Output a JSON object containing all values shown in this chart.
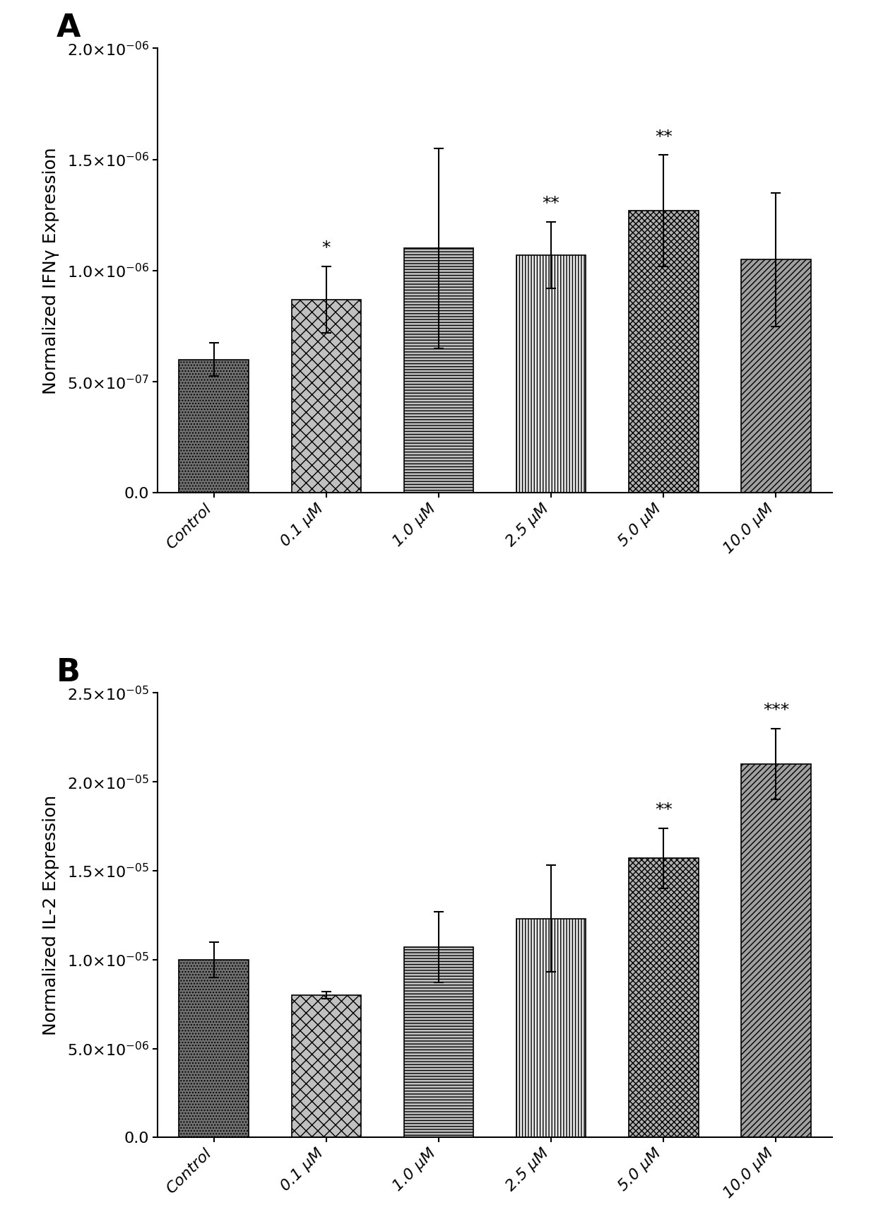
{
  "panel_A": {
    "label": "A",
    "ylabel": "Normalized IFNγ Expression",
    "categories": [
      "Control",
      "0.1 μM",
      "1.0 μM",
      "2.5 μM",
      "5.0 μM",
      "10.0 μM"
    ],
    "values": [
      6e-07,
      8.7e-07,
      1.1e-06,
      1.07e-06,
      1.27e-06,
      1.05e-06
    ],
    "errors": [
      7.5e-08,
      1.5e-07,
      4.5e-07,
      1.5e-07,
      2.5e-07,
      3e-07
    ],
    "significance": [
      "",
      "*",
      "",
      "**",
      "**",
      ""
    ],
    "ylim": [
      0,
      2e-06
    ],
    "yticks": [
      0,
      5e-07,
      1e-06,
      1.5e-06,
      2e-06
    ],
    "ytick_labels": [
      "0.0",
      "5.0×10$^{-07}$",
      "1.0×10$^{-06}$",
      "1.5×10$^{-06}$",
      "2.0×10$^{-06}$"
    ],
    "hatch_patterns": [
      "..",
      "xx",
      "--",
      "||",
      "//",
      "\\\\"
    ],
    "facecolors": [
      "#909090",
      "#c8c8c8",
      "#b0b0b0",
      "#d8d8d8",
      "#b0b0b0",
      "#a8a8a8"
    ]
  },
  "panel_B": {
    "label": "B",
    "ylabel": "Normalized IL-2 Expression",
    "categories": [
      "Control",
      "0.1 μM",
      "1.0 μM",
      "2.5 μM",
      "5.0 μM",
      "10.0 μM"
    ],
    "values": [
      1e-05,
      8e-06,
      1.07e-05,
      1.23e-05,
      1.57e-05,
      2.1e-05
    ],
    "errors": [
      1e-06,
      2e-07,
      2e-06,
      3e-06,
      1.7e-06,
      2e-06
    ],
    "significance": [
      "",
      "",
      "",
      "",
      "**",
      "***"
    ],
    "ylim": [
      0,
      2.5e-05
    ],
    "yticks": [
      0,
      5e-06,
      1e-05,
      1.5e-05,
      2e-05,
      2.5e-05
    ],
    "ytick_labels": [
      "0.0",
      "5.0×10$^{-06}$",
      "1.0×10$^{-05}$",
      "1.5×10$^{-05}$",
      "2.0×10$^{-05}$",
      "2.5×10$^{-05}$"
    ],
    "hatch_patterns": [
      "..",
      "xx",
      "--",
      "||",
      "//",
      "\\\\"
    ],
    "facecolors": [
      "#909090",
      "#c8c8c8",
      "#b0b0b0",
      "#d8d8d8",
      "#b0b0b0",
      "#a8a8a8"
    ]
  },
  "background_color": "#ffffff",
  "bar_edgecolor": "#000000",
  "errorbar_color": "#000000",
  "sig_fontsize": 18,
  "label_fontsize": 18,
  "tick_fontsize": 16,
  "panel_label_fontsize": 32
}
